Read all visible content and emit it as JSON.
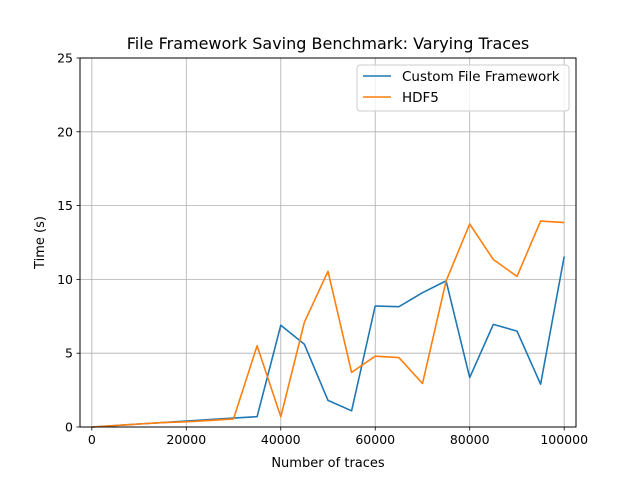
{
  "chart_data": {
    "type": "line",
    "title": "File Framework Saving Benchmark: Varying Traces",
    "xlabel": "Number of traces",
    "ylabel": "Time (s)",
    "xlim": [
      -2500,
      102500
    ],
    "ylim": [
      0,
      25
    ],
    "xticks": [
      0,
      20000,
      40000,
      60000,
      80000,
      100000
    ],
    "yticks": [
      0,
      5,
      10,
      15,
      20,
      25
    ],
    "grid": true,
    "legend_position": "upper right",
    "x": [
      100,
      5000,
      10000,
      15000,
      20000,
      25000,
      30000,
      35000,
      40000,
      45000,
      50000,
      55000,
      60000,
      65000,
      70000,
      75000,
      80000,
      85000,
      90000,
      95000,
      100000
    ],
    "series": [
      {
        "name": "Custom File Framework",
        "color": "#1f77b4",
        "values": [
          0.0,
          0.1,
          0.2,
          0.3,
          0.4,
          0.5,
          0.6,
          0.7,
          6.9,
          5.6,
          1.8,
          1.1,
          8.2,
          8.15,
          9.1,
          9.9,
          3.35,
          6.95,
          6.5,
          2.9,
          11.55
        ]
      },
      {
        "name": "HDF5",
        "color": "#ff7f0e",
        "values": [
          0.0,
          0.1,
          0.2,
          0.3,
          0.35,
          0.45,
          0.55,
          5.5,
          0.7,
          7.1,
          10.55,
          3.7,
          4.8,
          4.7,
          2.95,
          9.9,
          13.75,
          11.35,
          10.2,
          13.95,
          13.85
        ]
      }
    ]
  }
}
